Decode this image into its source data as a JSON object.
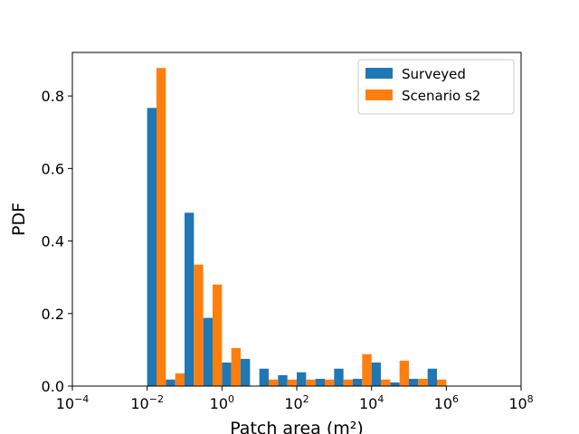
{
  "chart_data": {
    "type": "bar",
    "title": "",
    "xlabel": "Patch area (m²)",
    "ylabel": "PDF",
    "xscale": "log",
    "xlim": [
      0.0001,
      100000000
    ],
    "ylim": [
      0,
      0.92
    ],
    "x_ticks": [
      {
        "value": 0.0001,
        "base": "10",
        "exp": "−4"
      },
      {
        "value": 0.01,
        "base": "10",
        "exp": "−2"
      },
      {
        "value": 1,
        "base": "10",
        "exp": "0"
      },
      {
        "value": 100,
        "base": "10",
        "exp": "2"
      },
      {
        "value": 10000,
        "base": "10",
        "exp": "4"
      },
      {
        "value": 1000000,
        "base": "10",
        "exp": "6"
      },
      {
        "value": 100000000,
        "base": "10",
        "exp": "8"
      }
    ],
    "y_ticks": [
      "0.0",
      "0.2",
      "0.4",
      "0.6",
      "0.8"
    ],
    "y_tick_values": [
      0,
      0.2,
      0.4,
      0.6,
      0.8
    ],
    "bin_edges": [
      0.01,
      0.0316,
      0.1,
      0.316,
      1,
      3.16,
      10,
      31.6,
      100,
      316,
      1000,
      3160,
      10000,
      31600,
      100000,
      316000,
      1000000,
      3160000
    ],
    "legend_position": "top-right",
    "series": [
      {
        "name": "Surveyed",
        "color": "#1f77b4",
        "values": [
          0.767,
          0.018,
          0.478,
          0.188,
          0.065,
          0.075,
          0.048,
          0.03,
          0.038,
          0.02,
          0.048,
          0.02,
          0.065,
          0.01,
          0.02,
          0.048,
          0.0
        ]
      },
      {
        "name": "Scenario s2",
        "color": "#ff7f0e",
        "values": [
          0.877,
          0.035,
          0.335,
          0.28,
          0.105,
          0.0,
          0.018,
          0.018,
          0.018,
          0.018,
          0.018,
          0.088,
          0.018,
          0.07,
          0.02,
          0.018,
          0.0
        ]
      }
    ]
  }
}
